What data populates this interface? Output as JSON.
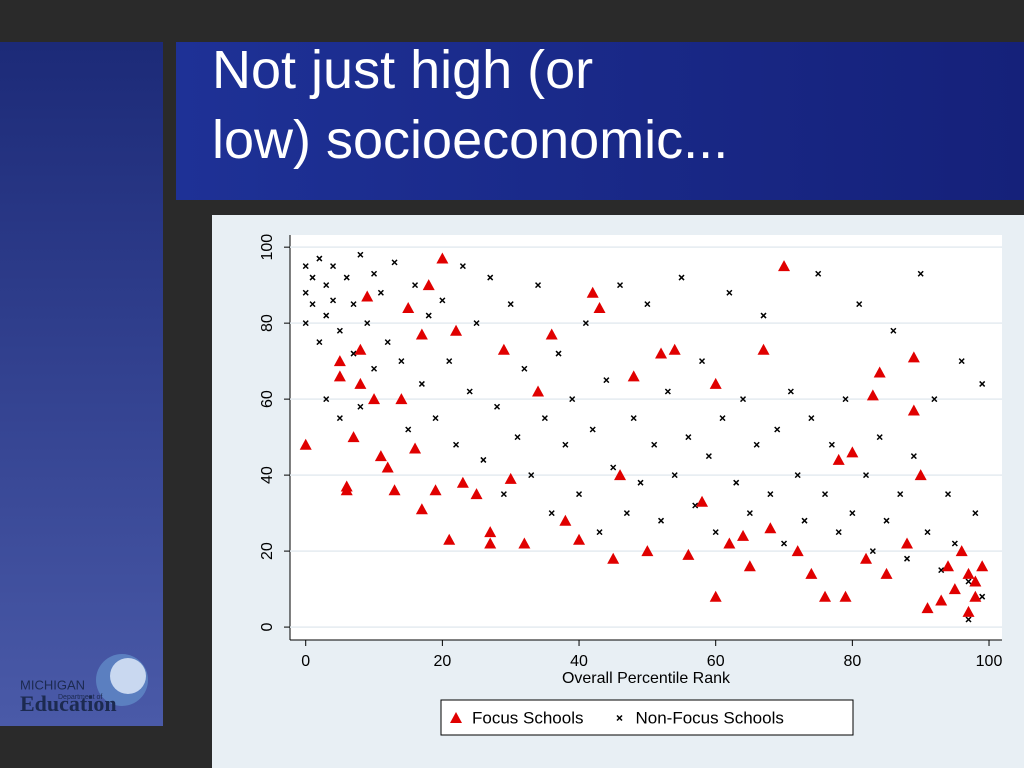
{
  "slide": {
    "title": "Not just high (or low) socioeconomic...",
    "logo": {
      "line1": "MICHIGAN",
      "line2": "Department of",
      "line3": "Education"
    }
  },
  "chart_data": {
    "type": "scatter",
    "x_label": "Overall Percentile Rank",
    "xlim": [
      -2.3,
      101.9
    ],
    "xticks": [
      0,
      20,
      40,
      60,
      80,
      100
    ],
    "ylim": [
      -3.4,
      103.2
    ],
    "yticks": [
      0,
      20,
      40,
      60,
      80,
      100
    ],
    "grid": true,
    "legend": "bottom",
    "series": [
      {
        "name": "Non-Focus Schools",
        "color": "#000000",
        "marker": "x",
        "x": [
          0,
          0,
          0,
          1,
          1,
          2,
          2,
          3,
          3,
          3,
          4,
          4,
          5,
          5,
          6,
          7,
          7,
          8,
          8,
          9,
          10,
          10,
          11,
          12,
          13,
          14,
          15,
          16,
          17,
          18,
          19,
          20,
          21,
          22,
          23,
          24,
          25,
          26,
          27,
          28,
          29,
          30,
          31,
          32,
          33,
          34,
          35,
          36,
          37,
          38,
          39,
          40,
          41,
          42,
          43,
          44,
          45,
          46,
          47,
          48,
          49,
          50,
          51,
          52,
          53,
          54,
          55,
          56,
          57,
          58,
          59,
          60,
          61,
          62,
          63,
          64,
          65,
          66,
          67,
          68,
          69,
          70,
          71,
          72,
          73,
          74,
          75,
          76,
          77,
          78,
          79,
          80,
          81,
          82,
          83,
          84,
          85,
          86,
          87,
          88,
          89,
          90,
          91,
          92,
          93,
          94,
          95,
          96,
          97,
          98,
          99,
          99,
          97
        ],
        "values": [
          95,
          88,
          80,
          92,
          85,
          97,
          75,
          90,
          82,
          60,
          95,
          86,
          78,
          55,
          92,
          85,
          72,
          98,
          58,
          80,
          93,
          68,
          88,
          75,
          96,
          70,
          52,
          90,
          64,
          82,
          55,
          86,
          70,
          48,
          95,
          62,
          80,
          44,
          92,
          58,
          35,
          85,
          50,
          68,
          40,
          90,
          55,
          30,
          72,
          48,
          60,
          35,
          80,
          52,
          25,
          65,
          42,
          90,
          30,
          55,
          38,
          85,
          48,
          28,
          62,
          40,
          92,
          50,
          32,
          70,
          45,
          25,
          55,
          88,
          38,
          60,
          30,
          48,
          82,
          35,
          52,
          22,
          62,
          40,
          28,
          55,
          93,
          35,
          48,
          25,
          60,
          30,
          85,
          40,
          20,
          50,
          28,
          78,
          35,
          18,
          45,
          93,
          25,
          60,
          15,
          35,
          22,
          70,
          12,
          30,
          64,
          8,
          2
        ]
      },
      {
        "name": "Focus Schools",
        "color": "#e00000",
        "marker": "triangle",
        "x": [
          0,
          6,
          6,
          5,
          5,
          7,
          8,
          8,
          9,
          10,
          11,
          12,
          13,
          14,
          15,
          16,
          17,
          17,
          18,
          19,
          20,
          21,
          22,
          23,
          25,
          27,
          27,
          29,
          30,
          32,
          34,
          36,
          38,
          40,
          42,
          43,
          45,
          46,
          48,
          50,
          52,
          54,
          56,
          58,
          60,
          60,
          62,
          64,
          65,
          67,
          68,
          70,
          72,
          74,
          76,
          78,
          79,
          80,
          82,
          83,
          84,
          85,
          88,
          89,
          89,
          90,
          91,
          93,
          94,
          95,
          96,
          97,
          98,
          99,
          98,
          97
        ],
        "values": [
          48,
          36,
          37,
          70,
          66,
          50,
          64,
          73,
          87,
          60,
          45,
          42,
          36,
          60,
          84,
          47,
          77,
          31,
          90,
          36,
          97,
          23,
          78,
          38,
          35,
          25,
          22,
          73,
          39,
          22,
          62,
          77,
          28,
          23,
          88,
          84,
          18,
          40,
          66,
          20,
          72,
          73,
          19,
          33,
          8,
          64,
          22,
          24,
          16,
          73,
          26,
          95,
          20,
          14,
          8,
          44,
          8,
          46,
          18,
          61,
          67,
          14,
          22,
          71,
          57,
          40,
          5,
          7,
          16,
          10,
          20,
          4,
          8,
          16,
          12,
          14
        ]
      }
    ]
  }
}
